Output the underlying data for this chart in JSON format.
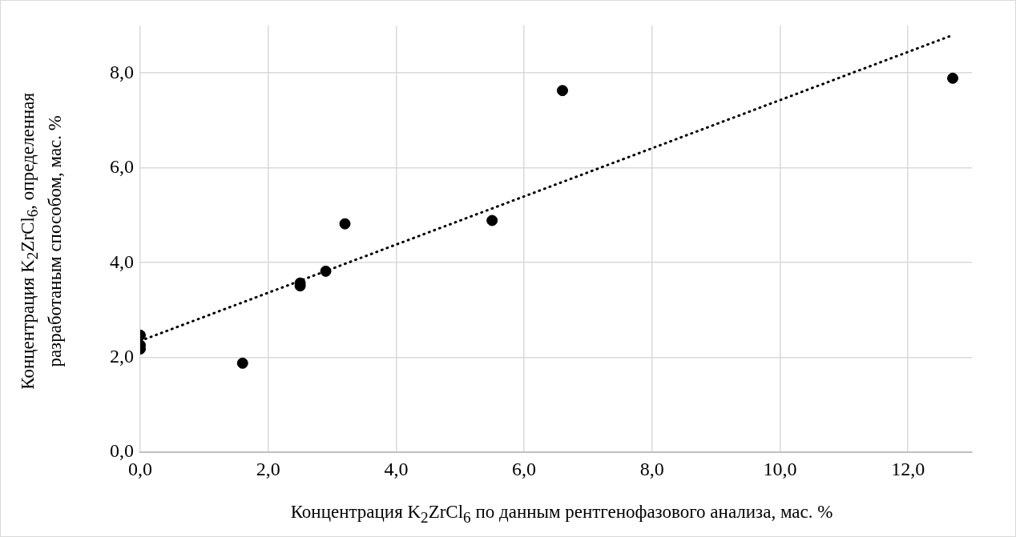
{
  "chart_data": {
    "type": "scatter",
    "xlabel": "Концентрация K$_{2}$ZrCl$_{6}$ по данным рентгенофазового анализа, мас. %",
    "ylabel": "Концентрация K$_{2}$ZrCl$_{6}$, определенная разработаным способом, мас. %",
    "xlim": [
      0,
      13
    ],
    "xticks": [
      {
        "value": 0,
        "label": "0,0"
      },
      {
        "value": 2,
        "label": "2,0"
      },
      {
        "value": 4,
        "label": "4,0"
      },
      {
        "value": 6,
        "label": "6,0"
      },
      {
        "value": 8,
        "label": "8,0"
      },
      {
        "value": 10,
        "label": "10,0"
      },
      {
        "value": 12,
        "label": "12,0"
      }
    ],
    "ylim": [
      0,
      9
    ],
    "yticks": [
      {
        "value": 0,
        "label": "0,0"
      },
      {
        "value": 2,
        "label": "2,0"
      },
      {
        "value": 4,
        "label": "4,0"
      },
      {
        "value": 6,
        "label": "6,0"
      },
      {
        "value": 8,
        "label": "8,0"
      }
    ],
    "grid": true,
    "legend": false,
    "series": [
      {
        "type": "scatter",
        "color": "#000000",
        "marker": "circle",
        "x": [
          0,
          0,
          0,
          1.6,
          2.5,
          2.5,
          2.9,
          3.2,
          5.5,
          6.6,
          12.7
        ],
        "values": [
          2.47,
          2.26,
          2.18,
          1.88,
          3.57,
          3.51,
          3.82,
          4.82,
          4.89,
          7.63,
          7.89
        ]
      },
      {
        "type": "line",
        "color": "#000000",
        "marker": "none",
        "line_style": "dotted",
        "x": [
          0,
          12.7
        ],
        "values": [
          2.35,
          8.8
        ]
      }
    ]
  }
}
